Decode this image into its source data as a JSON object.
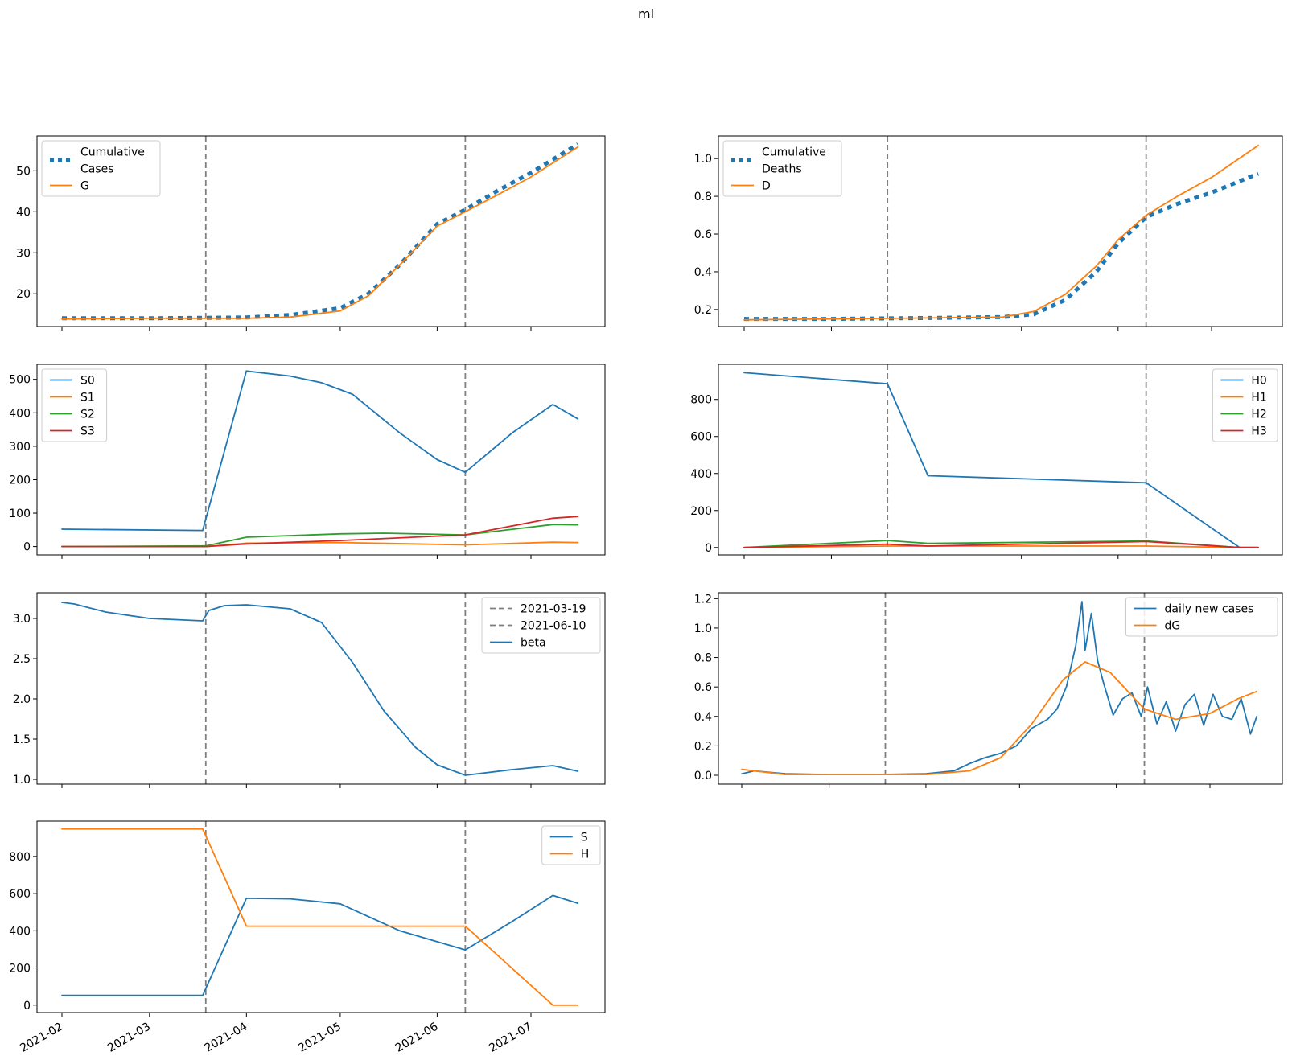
{
  "figure": {
    "title": "ml"
  },
  "colors": {
    "c0": "#1f77b4",
    "c1": "#ff7f0e",
    "c2": "#2ca02c",
    "c3": "#d62728",
    "vline": "#7f7f7f"
  },
  "x_axis": {
    "ticks": [
      "2021-02-01",
      "2021-03-01",
      "2021-04-01",
      "2021-05-01",
      "2021-06-01",
      "2021-07-01"
    ],
    "tick_labels": [
      "2021-02",
      "2021-03",
      "2021-04",
      "2021-05",
      "2021-06",
      "2021-07"
    ],
    "range": [
      "2021-01-26",
      "2021-07-24"
    ]
  },
  "chart_data": [
    {
      "id": "cases",
      "type": "line",
      "ylim": [
        12,
        58.5
      ],
      "yticks": [
        20,
        30,
        40,
        50
      ],
      "vlines": [
        "2021-03-19",
        "2021-06-10"
      ],
      "legend": "top-left",
      "show_xticklabels": false,
      "series": [
        {
          "name": "Cumulative\nCases",
          "color": "c0",
          "style": "dotted",
          "x": [
            "2021-02-01",
            "2021-03-01",
            "2021-04-01",
            "2021-04-15",
            "2021-05-01",
            "2021-05-10",
            "2021-05-20",
            "2021-06-01",
            "2021-06-10",
            "2021-06-20",
            "2021-07-01",
            "2021-07-16"
          ],
          "y": [
            14,
            14,
            14.2,
            14.8,
            16.5,
            20,
            27,
            37,
            40.5,
            45,
            49.5,
            56.5
          ]
        },
        {
          "name": "G",
          "color": "c1",
          "style": "solid",
          "x": [
            "2021-02-01",
            "2021-03-01",
            "2021-04-01",
            "2021-04-15",
            "2021-05-01",
            "2021-05-10",
            "2021-05-20",
            "2021-06-01",
            "2021-06-10",
            "2021-06-20",
            "2021-07-01",
            "2021-07-16"
          ],
          "y": [
            13.8,
            14,
            14,
            14.3,
            15.8,
            19.5,
            27,
            36.5,
            40,
            44,
            48.5,
            55.8
          ]
        }
      ]
    },
    {
      "id": "deaths",
      "type": "line",
      "ylim": [
        0.11,
        1.12
      ],
      "yticks": [
        0.2,
        0.4,
        0.6,
        0.8,
        1.0
      ],
      "vlines": [
        "2021-03-19",
        "2021-06-10"
      ],
      "legend": "top-left",
      "show_xticklabels": false,
      "series": [
        {
          "name": "Cumulative\nDeaths",
          "color": "c0",
          "style": "dotted",
          "x": [
            "2021-02-01",
            "2021-03-01",
            "2021-04-01",
            "2021-04-25",
            "2021-05-05",
            "2021-05-15",
            "2021-05-25",
            "2021-06-01",
            "2021-06-10",
            "2021-06-20",
            "2021-07-01",
            "2021-07-16"
          ],
          "y": [
            0.15,
            0.15,
            0.155,
            0.16,
            0.175,
            0.25,
            0.4,
            0.55,
            0.69,
            0.76,
            0.82,
            0.92
          ]
        },
        {
          "name": "D",
          "color": "c1",
          "style": "solid",
          "x": [
            "2021-02-01",
            "2021-03-01",
            "2021-04-01",
            "2021-04-25",
            "2021-05-05",
            "2021-05-15",
            "2021-05-25",
            "2021-06-01",
            "2021-06-10",
            "2021-06-20",
            "2021-07-01",
            "2021-07-16"
          ],
          "y": [
            0.145,
            0.15,
            0.155,
            0.16,
            0.19,
            0.28,
            0.43,
            0.57,
            0.7,
            0.8,
            0.9,
            1.07
          ]
        }
      ]
    },
    {
      "id": "S-compartments",
      "type": "line",
      "ylim": [
        -25,
        545
      ],
      "yticks": [
        0,
        100,
        200,
        300,
        400,
        500
      ],
      "vlines": [
        "2021-03-19",
        "2021-06-10"
      ],
      "legend": "top-left",
      "show_xticklabels": false,
      "series": [
        {
          "name": "S0",
          "color": "c0",
          "style": "solid",
          "x": [
            "2021-02-01",
            "2021-03-18",
            "2021-04-01",
            "2021-04-15",
            "2021-04-25",
            "2021-05-05",
            "2021-05-20",
            "2021-06-01",
            "2021-06-10",
            "2021-06-25",
            "2021-07-08",
            "2021-07-16"
          ],
          "y": [
            52,
            48,
            525,
            510,
            490,
            455,
            340,
            260,
            222,
            340,
            425,
            382
          ]
        },
        {
          "name": "S1",
          "color": "c1",
          "style": "solid",
          "x": [
            "2021-02-01",
            "2021-03-19",
            "2021-04-01",
            "2021-05-01",
            "2021-06-10",
            "2021-07-08",
            "2021-07-16"
          ],
          "y": [
            0,
            0,
            10,
            12,
            5,
            13,
            12
          ]
        },
        {
          "name": "S2",
          "color": "c2",
          "style": "solid",
          "x": [
            "2021-02-01",
            "2021-03-19",
            "2021-04-01",
            "2021-05-01",
            "2021-05-15",
            "2021-06-10",
            "2021-07-08",
            "2021-07-16"
          ],
          "y": [
            0,
            2,
            28,
            38,
            40,
            35,
            66,
            65
          ]
        },
        {
          "name": "S3",
          "color": "c3",
          "style": "solid",
          "x": [
            "2021-02-01",
            "2021-03-19",
            "2021-04-01",
            "2021-05-01",
            "2021-06-10",
            "2021-07-08",
            "2021-07-16"
          ],
          "y": [
            0,
            0,
            8,
            18,
            35,
            85,
            90
          ]
        }
      ]
    },
    {
      "id": "H-compartments",
      "type": "line",
      "ylim": [
        -40,
        990
      ],
      "yticks": [
        0,
        200,
        400,
        600,
        800
      ],
      "vlines": [
        "2021-03-19",
        "2021-06-10"
      ],
      "legend": "top-right",
      "show_xticklabels": false,
      "series": [
        {
          "name": "H0",
          "color": "c0",
          "style": "solid",
          "x": [
            "2021-02-01",
            "2021-03-19",
            "2021-04-01",
            "2021-06-10",
            "2021-07-10",
            "2021-07-16"
          ],
          "y": [
            945,
            885,
            388,
            350,
            0,
            0
          ]
        },
        {
          "name": "H1",
          "color": "c1",
          "style": "solid",
          "x": [
            "2021-02-01",
            "2021-03-19",
            "2021-04-01",
            "2021-06-10",
            "2021-07-10",
            "2021-07-16"
          ],
          "y": [
            0,
            8,
            8,
            8,
            0,
            0
          ]
        },
        {
          "name": "H2",
          "color": "c2",
          "style": "solid",
          "x": [
            "2021-02-01",
            "2021-03-19",
            "2021-04-01",
            "2021-06-10",
            "2021-07-10",
            "2021-07-16"
          ],
          "y": [
            0,
            38,
            22,
            35,
            0,
            0
          ]
        },
        {
          "name": "H3",
          "color": "c3",
          "style": "solid",
          "x": [
            "2021-02-01",
            "2021-03-19",
            "2021-04-01",
            "2021-06-10",
            "2021-07-10",
            "2021-07-16"
          ],
          "y": [
            0,
            18,
            8,
            32,
            0,
            0
          ]
        }
      ]
    },
    {
      "id": "beta",
      "type": "line",
      "ylim": [
        0.94,
        3.32
      ],
      "yticks": [
        1.0,
        1.5,
        2.0,
        2.5,
        3.0
      ],
      "vlines": [
        "2021-03-19",
        "2021-06-10"
      ],
      "legend": "top-right",
      "show_xticklabels": false,
      "legend_extra": [
        {
          "name": "2021-03-19",
          "color": "vline",
          "style": "dashed"
        },
        {
          "name": "2021-06-10",
          "color": "vline",
          "style": "dashed"
        }
      ],
      "series": [
        {
          "name": "beta",
          "color": "c0",
          "style": "solid",
          "x": [
            "2021-02-01",
            "2021-02-05",
            "2021-02-15",
            "2021-03-01",
            "2021-03-18",
            "2021-03-20",
            "2021-03-25",
            "2021-04-01",
            "2021-04-15",
            "2021-04-25",
            "2021-05-05",
            "2021-05-15",
            "2021-05-25",
            "2021-06-01",
            "2021-06-10",
            "2021-06-25",
            "2021-07-08",
            "2021-07-16"
          ],
          "y": [
            3.2,
            3.18,
            3.08,
            3.0,
            2.97,
            3.1,
            3.16,
            3.17,
            3.12,
            2.95,
            2.45,
            1.85,
            1.4,
            1.18,
            1.05,
            1.12,
            1.17,
            1.1
          ]
        }
      ]
    },
    {
      "id": "daily",
      "type": "line",
      "ylim": [
        -0.06,
        1.24
      ],
      "yticks": [
        0.0,
        0.2,
        0.4,
        0.6,
        0.8,
        1.0,
        1.2
      ],
      "vlines": [
        "2021-03-19",
        "2021-06-10"
      ],
      "legend": "top-right",
      "show_xticklabels": false,
      "series": [
        {
          "name": "daily new cases",
          "color": "c0",
          "style": "solid",
          "x": [
            "2021-02-01",
            "2021-02-05",
            "2021-02-10",
            "2021-02-15",
            "2021-03-01",
            "2021-03-15",
            "2021-04-01",
            "2021-04-10",
            "2021-04-15",
            "2021-04-20",
            "2021-04-25",
            "2021-04-30",
            "2021-05-05",
            "2021-05-10",
            "2021-05-13",
            "2021-05-16",
            "2021-05-19",
            "2021-05-21",
            "2021-05-22",
            "2021-05-24",
            "2021-05-26",
            "2021-05-28",
            "2021-05-31",
            "2021-06-03",
            "2021-06-06",
            "2021-06-09",
            "2021-06-11",
            "2021-06-14",
            "2021-06-17",
            "2021-06-20",
            "2021-06-23",
            "2021-06-26",
            "2021-06-29",
            "2021-07-02",
            "2021-07-05",
            "2021-07-08",
            "2021-07-11",
            "2021-07-14",
            "2021-07-16"
          ],
          "y": [
            0.01,
            0.03,
            0.02,
            0.01,
            0.005,
            0.005,
            0.01,
            0.03,
            0.08,
            0.12,
            0.15,
            0.2,
            0.32,
            0.38,
            0.45,
            0.6,
            0.88,
            1.18,
            0.85,
            1.1,
            0.78,
            0.62,
            0.41,
            0.52,
            0.56,
            0.4,
            0.6,
            0.35,
            0.5,
            0.3,
            0.48,
            0.55,
            0.34,
            0.55,
            0.4,
            0.38,
            0.52,
            0.28,
            0.4
          ]
        },
        {
          "name": "dG",
          "color": "c1",
          "style": "solid",
          "x": [
            "2021-02-01",
            "2021-02-15",
            "2021-03-01",
            "2021-03-19",
            "2021-04-01",
            "2021-04-15",
            "2021-04-25",
            "2021-05-05",
            "2021-05-15",
            "2021-05-22",
            "2021-05-30",
            "2021-06-10",
            "2021-06-20",
            "2021-07-01",
            "2021-07-10",
            "2021-07-16"
          ],
          "y": [
            0.04,
            0.005,
            0.005,
            0.005,
            0.005,
            0.03,
            0.12,
            0.35,
            0.65,
            0.77,
            0.7,
            0.45,
            0.38,
            0.42,
            0.52,
            0.57
          ]
        }
      ]
    },
    {
      "id": "totals",
      "type": "line",
      "ylim": [
        -40,
        990
      ],
      "yticks": [
        0,
        200,
        400,
        600,
        800
      ],
      "vlines": [
        "2021-03-19",
        "2021-06-10"
      ],
      "legend": "top-right",
      "show_xticklabels": true,
      "series": [
        {
          "name": "S",
          "color": "c0",
          "style": "solid",
          "x": [
            "2021-02-01",
            "2021-03-18",
            "2021-04-01",
            "2021-04-15",
            "2021-05-01",
            "2021-05-20",
            "2021-06-10",
            "2021-06-25",
            "2021-07-08",
            "2021-07-16"
          ],
          "y": [
            52,
            52,
            575,
            572,
            545,
            400,
            297,
            450,
            590,
            548
          ]
        },
        {
          "name": "H",
          "color": "c1",
          "style": "solid",
          "x": [
            "2021-02-01",
            "2021-03-18",
            "2021-04-01",
            "2021-06-10",
            "2021-07-08",
            "2021-07-16"
          ],
          "y": [
            948,
            948,
            425,
            425,
            0,
            0
          ]
        }
      ]
    }
  ]
}
